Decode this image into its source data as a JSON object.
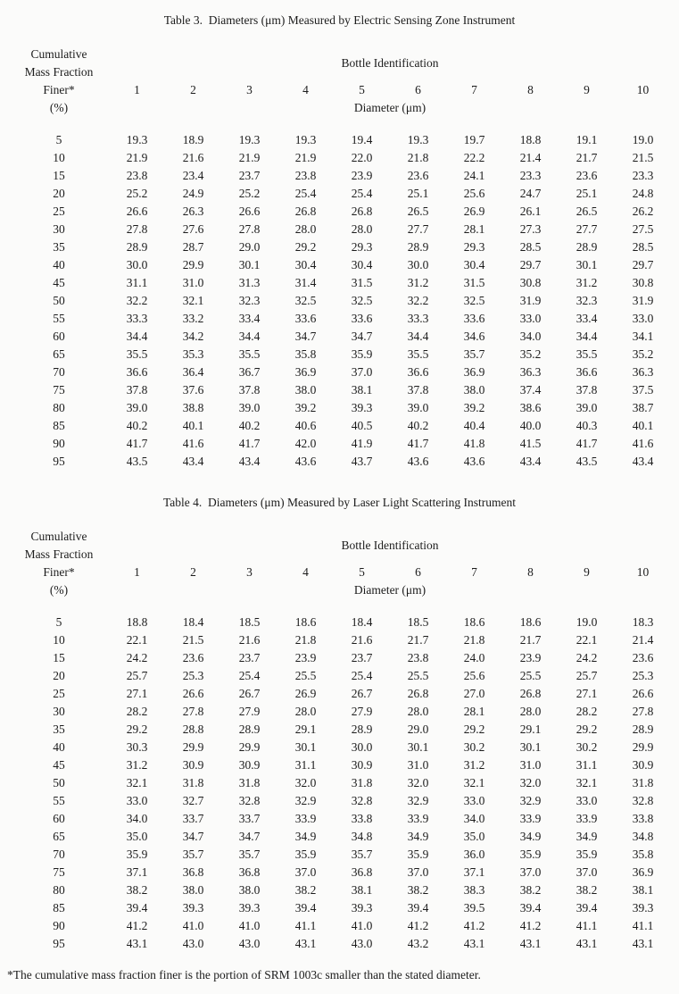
{
  "footnote": "*The cumulative mass fraction finer is the portion of SRM 1003c smaller than the stated diameter.",
  "tables": [
    {
      "title": "Table 3.  Diameters (μm) Measured by Electric Sensing Zone Instrument",
      "row_header": [
        "Cumulative",
        "Mass Fraction",
        "Finer*",
        "(%)"
      ],
      "col_group_header": "Bottle Identification",
      "col_subheader": "Diameter (μm)",
      "bottle_ids": [
        "1",
        "2",
        "3",
        "4",
        "5",
        "6",
        "7",
        "8",
        "9",
        "10"
      ],
      "rows": [
        {
          "pct": "5",
          "values": [
            "19.3",
            "18.9",
            "19.3",
            "19.3",
            "19.4",
            "19.3",
            "19.7",
            "18.8",
            "19.1",
            "19.0"
          ]
        },
        {
          "pct": "10",
          "values": [
            "21.9",
            "21.6",
            "21.9",
            "21.9",
            "22.0",
            "21.8",
            "22.2",
            "21.4",
            "21.7",
            "21.5"
          ]
        },
        {
          "pct": "15",
          "values": [
            "23.8",
            "23.4",
            "23.7",
            "23.8",
            "23.9",
            "23.6",
            "24.1",
            "23.3",
            "23.6",
            "23.3"
          ]
        },
        {
          "pct": "20",
          "values": [
            "25.2",
            "24.9",
            "25.2",
            "25.4",
            "25.4",
            "25.1",
            "25.6",
            "24.7",
            "25.1",
            "24.8"
          ]
        },
        {
          "pct": "25",
          "values": [
            "26.6",
            "26.3",
            "26.6",
            "26.8",
            "26.8",
            "26.5",
            "26.9",
            "26.1",
            "26.5",
            "26.2"
          ]
        },
        {
          "pct": "30",
          "values": [
            "27.8",
            "27.6",
            "27.8",
            "28.0",
            "28.0",
            "27.7",
            "28.1",
            "27.3",
            "27.7",
            "27.5"
          ]
        },
        {
          "pct": "35",
          "values": [
            "28.9",
            "28.7",
            "29.0",
            "29.2",
            "29.3",
            "28.9",
            "29.3",
            "28.5",
            "28.9",
            "28.5"
          ]
        },
        {
          "pct": "40",
          "values": [
            "30.0",
            "29.9",
            "30.1",
            "30.4",
            "30.4",
            "30.0",
            "30.4",
            "29.7",
            "30.1",
            "29.7"
          ]
        },
        {
          "pct": "45",
          "values": [
            "31.1",
            "31.0",
            "31.3",
            "31.4",
            "31.5",
            "31.2",
            "31.5",
            "30.8",
            "31.2",
            "30.8"
          ]
        },
        {
          "pct": "50",
          "values": [
            "32.2",
            "32.1",
            "32.3",
            "32.5",
            "32.5",
            "32.2",
            "32.5",
            "31.9",
            "32.3",
            "31.9"
          ]
        },
        {
          "pct": "55",
          "values": [
            "33.3",
            "33.2",
            "33.4",
            "33.6",
            "33.6",
            "33.3",
            "33.6",
            "33.0",
            "33.4",
            "33.0"
          ]
        },
        {
          "pct": "60",
          "values": [
            "34.4",
            "34.2",
            "34.4",
            "34.7",
            "34.7",
            "34.4",
            "34.6",
            "34.0",
            "34.4",
            "34.1"
          ]
        },
        {
          "pct": "65",
          "values": [
            "35.5",
            "35.3",
            "35.5",
            "35.8",
            "35.9",
            "35.5",
            "35.7",
            "35.2",
            "35.5",
            "35.2"
          ]
        },
        {
          "pct": "70",
          "values": [
            "36.6",
            "36.4",
            "36.7",
            "36.9",
            "37.0",
            "36.6",
            "36.9",
            "36.3",
            "36.6",
            "36.3"
          ]
        },
        {
          "pct": "75",
          "values": [
            "37.8",
            "37.6",
            "37.8",
            "38.0",
            "38.1",
            "37.8",
            "38.0",
            "37.4",
            "37.8",
            "37.5"
          ]
        },
        {
          "pct": "80",
          "values": [
            "39.0",
            "38.8",
            "39.0",
            "39.2",
            "39.3",
            "39.0",
            "39.2",
            "38.6",
            "39.0",
            "38.7"
          ]
        },
        {
          "pct": "85",
          "values": [
            "40.2",
            "40.1",
            "40.2",
            "40.6",
            "40.5",
            "40.2",
            "40.4",
            "40.0",
            "40.3",
            "40.1"
          ]
        },
        {
          "pct": "90",
          "values": [
            "41.7",
            "41.6",
            "41.7",
            "42.0",
            "41.9",
            "41.7",
            "41.8",
            "41.5",
            "41.7",
            "41.6"
          ]
        },
        {
          "pct": "95",
          "values": [
            "43.5",
            "43.4",
            "43.4",
            "43.6",
            "43.7",
            "43.6",
            "43.6",
            "43.4",
            "43.5",
            "43.4"
          ]
        }
      ]
    },
    {
      "title": "Table 4.  Diameters (μm) Measured by Laser Light Scattering Instrument",
      "row_header": [
        "Cumulative",
        "Mass Fraction",
        "Finer*",
        "(%)"
      ],
      "col_group_header": "Bottle Identification",
      "col_subheader": "Diameter (μm)",
      "bottle_ids": [
        "1",
        "2",
        "3",
        "4",
        "5",
        "6",
        "7",
        "8",
        "9",
        "10"
      ],
      "rows": [
        {
          "pct": "5",
          "values": [
            "18.8",
            "18.4",
            "18.5",
            "18.6",
            "18.4",
            "18.5",
            "18.6",
            "18.6",
            "19.0",
            "18.3"
          ]
        },
        {
          "pct": "10",
          "values": [
            "22.1",
            "21.5",
            "21.6",
            "21.8",
            "21.6",
            "21.7",
            "21.8",
            "21.7",
            "22.1",
            "21.4"
          ]
        },
        {
          "pct": "15",
          "values": [
            "24.2",
            "23.6",
            "23.7",
            "23.9",
            "23.7",
            "23.8",
            "24.0",
            "23.9",
            "24.2",
            "23.6"
          ]
        },
        {
          "pct": "20",
          "values": [
            "25.7",
            "25.3",
            "25.4",
            "25.5",
            "25.4",
            "25.5",
            "25.6",
            "25.5",
            "25.7",
            "25.3"
          ]
        },
        {
          "pct": "25",
          "values": [
            "27.1",
            "26.6",
            "26.7",
            "26.9",
            "26.7",
            "26.8",
            "27.0",
            "26.8",
            "27.1",
            "26.6"
          ]
        },
        {
          "pct": "30",
          "values": [
            "28.2",
            "27.8",
            "27.9",
            "28.0",
            "27.9",
            "28.0",
            "28.1",
            "28.0",
            "28.2",
            "27.8"
          ]
        },
        {
          "pct": "35",
          "values": [
            "29.2",
            "28.8",
            "28.9",
            "29.1",
            "28.9",
            "29.0",
            "29.2",
            "29.1",
            "29.2",
            "28.9"
          ]
        },
        {
          "pct": "40",
          "values": [
            "30.3",
            "29.9",
            "29.9",
            "30.1",
            "30.0",
            "30.1",
            "30.2",
            "30.1",
            "30.2",
            "29.9"
          ]
        },
        {
          "pct": "45",
          "values": [
            "31.2",
            "30.9",
            "30.9",
            "31.1",
            "30.9",
            "31.0",
            "31.2",
            "31.0",
            "31.1",
            "30.9"
          ]
        },
        {
          "pct": "50",
          "values": [
            "32.1",
            "31.8",
            "31.8",
            "32.0",
            "31.8",
            "32.0",
            "32.1",
            "32.0",
            "32.1",
            "31.8"
          ]
        },
        {
          "pct": "55",
          "values": [
            "33.0",
            "32.7",
            "32.8",
            "32.9",
            "32.8",
            "32.9",
            "33.0",
            "32.9",
            "33.0",
            "32.8"
          ]
        },
        {
          "pct": "60",
          "values": [
            "34.0",
            "33.7",
            "33.7",
            "33.9",
            "33.8",
            "33.9",
            "34.0",
            "33.9",
            "33.9",
            "33.8"
          ]
        },
        {
          "pct": "65",
          "values": [
            "35.0",
            "34.7",
            "34.7",
            "34.9",
            "34.8",
            "34.9",
            "35.0",
            "34.9",
            "34.9",
            "34.8"
          ]
        },
        {
          "pct": "70",
          "values": [
            "35.9",
            "35.7",
            "35.7",
            "35.9",
            "35.7",
            "35.9",
            "36.0",
            "35.9",
            "35.9",
            "35.8"
          ]
        },
        {
          "pct": "75",
          "values": [
            "37.1",
            "36.8",
            "36.8",
            "37.0",
            "36.8",
            "37.0",
            "37.1",
            "37.0",
            "37.0",
            "36.9"
          ]
        },
        {
          "pct": "80",
          "values": [
            "38.2",
            "38.0",
            "38.0",
            "38.2",
            "38.1",
            "38.2",
            "38.3",
            "38.2",
            "38.2",
            "38.1"
          ]
        },
        {
          "pct": "85",
          "values": [
            "39.4",
            "39.3",
            "39.3",
            "39.4",
            "39.3",
            "39.4",
            "39.5",
            "39.4",
            "39.4",
            "39.3"
          ]
        },
        {
          "pct": "90",
          "values": [
            "41.2",
            "41.0",
            "41.0",
            "41.1",
            "41.0",
            "41.2",
            "41.2",
            "41.2",
            "41.1",
            "41.1"
          ]
        },
        {
          "pct": "95",
          "values": [
            "43.1",
            "43.0",
            "43.0",
            "43.1",
            "43.0",
            "43.2",
            "43.1",
            "43.1",
            "43.1",
            "43.1"
          ]
        }
      ]
    }
  ]
}
